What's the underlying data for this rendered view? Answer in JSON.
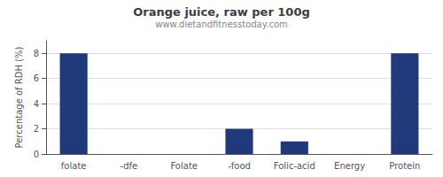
{
  "chart_data": {
    "type": "bar",
    "title": "Orange juice, raw per 100g",
    "subtitle": "www.dietandfitnesstoday.com",
    "categories": [
      "folate",
      "-dfe",
      "Folate",
      "-food",
      "Folic-acid",
      "Energy",
      "Protein"
    ],
    "values": [
      8.0,
      0.0,
      0.0,
      2.0,
      1.0,
      0.0,
      8.0
    ],
    "color": "#1f3a7a",
    "ylabel": "Percentage of RDH (%)",
    "ylim": [
      0,
      9
    ],
    "yticks": [
      0,
      2,
      4,
      6,
      8
    ],
    "grid": true
  }
}
